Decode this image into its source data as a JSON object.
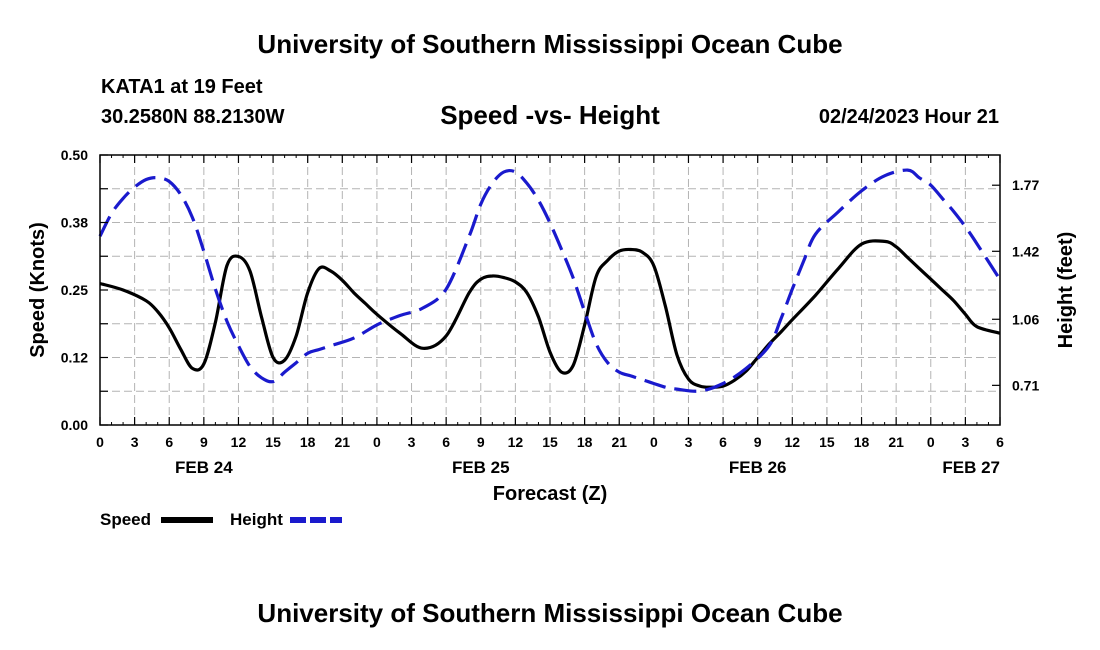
{
  "header": {
    "title": "University of Southern Mississippi Ocean Cube",
    "station": "KATA1 at 19 Feet",
    "coordinates": "30.2580N  88.2130W",
    "subtitle": "Speed -vs- Height",
    "datetime": "02/24/2023 Hour 21"
  },
  "footer": {
    "title": "University of Southern Mississippi Ocean Cube"
  },
  "chart_data": {
    "type": "line",
    "title": "Speed -vs- Height",
    "xlabel": "Forecast (Z)",
    "ylabel_left": "Speed (Knots)",
    "ylabel_right": "Height (feet)",
    "x_range_hours": [
      0,
      78
    ],
    "ylim_left": [
      0.0,
      0.5
    ],
    "ylim_right": [
      0.5,
      1.93
    ],
    "grid": true,
    "legend_position": "bottom-left",
    "x_tick_labels": [
      "0",
      "3",
      "6",
      "9",
      "12",
      "15",
      "18",
      "21",
      "0",
      "3",
      "6",
      "9",
      "12",
      "15",
      "18",
      "21",
      "0",
      "3",
      "6",
      "9",
      "12",
      "15",
      "18",
      "21",
      "0",
      "3",
      "6"
    ],
    "date_labels": [
      {
        "hour": 9,
        "label": "FEB 24"
      },
      {
        "hour": 33,
        "label": "FEB 25"
      },
      {
        "hour": 57,
        "label": "FEB 26"
      },
      {
        "hour": 81,
        "label": "FEB 27"
      }
    ],
    "y_left_ticks": [
      "0.00",
      "0.12",
      "0.25",
      "0.38",
      "0.50"
    ],
    "y_right_ticks": [
      "0.71",
      "1.06",
      "1.42",
      "1.77"
    ],
    "series": [
      {
        "name": "Speed",
        "axis": "left",
        "color": "#000000",
        "dash": "solid",
        "x": [
          0,
          2,
          4,
          5,
          6,
          7,
          8,
          9,
          10,
          11,
          12,
          13,
          14,
          15,
          16,
          17,
          18,
          19,
          20,
          21,
          22,
          23,
          24,
          26,
          28,
          30,
          32,
          33,
          34,
          35,
          36,
          37,
          38,
          39,
          40,
          41,
          42,
          43,
          44,
          45,
          46,
          47,
          48,
          49,
          50,
          51,
          52,
          53,
          54,
          55,
          56,
          57,
          58,
          59,
          60,
          62,
          64,
          66,
          68,
          69,
          70,
          71,
          72,
          73,
          74,
          75,
          76,
          78
        ],
        "values": [
          0.262,
          0.25,
          0.23,
          0.21,
          0.18,
          0.14,
          0.105,
          0.113,
          0.19,
          0.295,
          0.312,
          0.285,
          0.2,
          0.125,
          0.12,
          0.165,
          0.245,
          0.29,
          0.285,
          0.268,
          0.245,
          0.225,
          0.205,
          0.17,
          0.142,
          0.165,
          0.245,
          0.27,
          0.276,
          0.273,
          0.265,
          0.245,
          0.2,
          0.135,
          0.098,
          0.11,
          0.185,
          0.275,
          0.305,
          0.322,
          0.325,
          0.32,
          0.295,
          0.22,
          0.13,
          0.085,
          0.072,
          0.07,
          0.072,
          0.083,
          0.1,
          0.125,
          0.15,
          0.172,
          0.195,
          0.24,
          0.29,
          0.335,
          0.34,
          0.33,
          0.31,
          0.29,
          0.27,
          0.25,
          0.23,
          0.205,
          0.182,
          0.17
        ]
      },
      {
        "name": "Height",
        "axis": "right",
        "color": "#1a1acd",
        "dash": "dashed",
        "x": [
          0,
          1,
          2,
          3,
          4,
          5,
          6,
          7,
          8,
          9,
          10,
          11,
          12,
          13,
          14,
          15,
          16,
          17,
          18,
          19,
          20,
          22,
          24,
          26,
          28,
          30,
          32,
          33,
          34,
          35,
          36,
          37,
          38,
          39,
          40,
          41,
          42,
          43,
          44,
          45,
          46,
          47,
          48,
          49,
          50,
          52,
          54,
          56,
          58,
          59,
          60,
          61,
          62,
          64,
          66,
          68,
          70,
          71,
          72,
          73,
          74,
          75,
          76,
          78
        ],
        "values": [
          1.5,
          1.62,
          1.7,
          1.76,
          1.8,
          1.81,
          1.79,
          1.72,
          1.6,
          1.42,
          1.22,
          1.05,
          0.92,
          0.81,
          0.75,
          0.73,
          0.78,
          0.83,
          0.88,
          0.9,
          0.92,
          0.96,
          1.03,
          1.08,
          1.12,
          1.22,
          1.5,
          1.67,
          1.78,
          1.84,
          1.84,
          1.78,
          1.69,
          1.57,
          1.43,
          1.28,
          1.1,
          0.93,
          0.83,
          0.78,
          0.76,
          0.74,
          0.72,
          0.7,
          0.69,
          0.68,
          0.72,
          0.8,
          0.92,
          1.06,
          1.22,
          1.37,
          1.51,
          1.63,
          1.74,
          1.82,
          1.85,
          1.81,
          1.77,
          1.7,
          1.63,
          1.55,
          1.46,
          1.27
        ]
      }
    ],
    "legend": [
      {
        "name": "Speed",
        "label": "Speed"
      },
      {
        "name": "Height",
        "label": "Height"
      }
    ]
  }
}
